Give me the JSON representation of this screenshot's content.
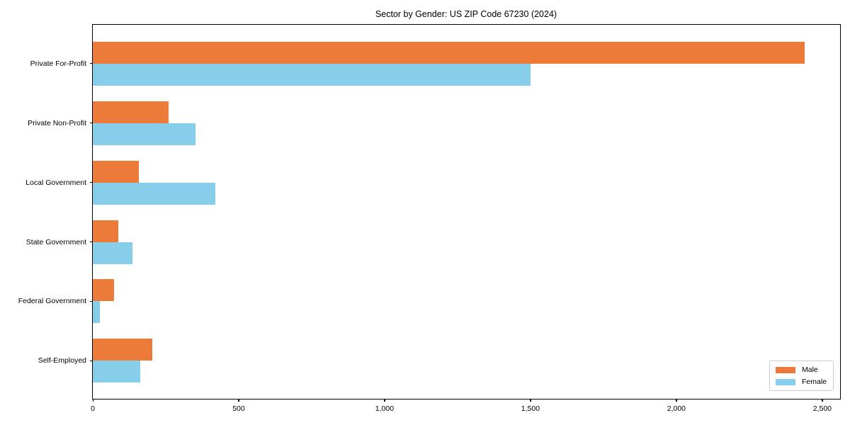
{
  "title": "Sector by Gender: US ZIP Code 67230 (2024)",
  "chart_data": {
    "type": "bar",
    "orientation": "horizontal",
    "title": "Sector by Gender: US ZIP Code 67230 (2024)",
    "categories": [
      "Private For-Profit",
      "Private Non-Profit",
      "Local Government",
      "State Government",
      "Federal Government",
      "Self-Employed"
    ],
    "series": [
      {
        "name": "Male",
        "color": "#EC7A38",
        "values": [
          2440,
          260,
          158,
          87,
          73,
          203
        ]
      },
      {
        "name": "Female",
        "color": "#87CEEB",
        "values": [
          1500,
          352,
          420,
          135,
          25,
          163
        ]
      }
    ],
    "xlabel": "",
    "ylabel": "",
    "xlim": [
      0,
      2561
    ],
    "xticks": [
      0,
      500,
      1000,
      1500,
      2000,
      2500
    ],
    "xtick_labels": [
      "0",
      "500",
      "1,000",
      "1,500",
      "2,000",
      "2,500"
    ],
    "grid": false,
    "legend_position": "lower right",
    "background_color": "#ffffff",
    "spine_color": "#000000",
    "text_color": "#000000"
  }
}
